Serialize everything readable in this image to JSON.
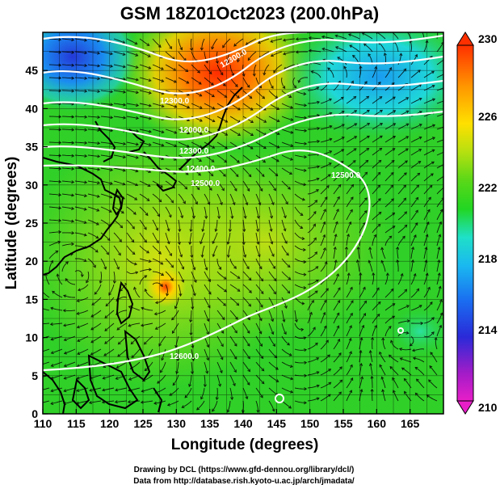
{
  "title": "GSM 18Z01Oct2023 (200.0hPa)",
  "xaxis": {
    "label": "Longitude (degrees)",
    "range": [
      110,
      170
    ],
    "ticks": [
      "110",
      "115",
      "120",
      "125",
      "130",
      "135",
      "140",
      "145",
      "150",
      "155",
      "160",
      "165"
    ]
  },
  "yaxis": {
    "label": "Latitude (degrees)",
    "range": [
      0,
      50
    ],
    "ticks": [
      "0",
      "5",
      "10",
      "15",
      "20",
      "25",
      "30",
      "35",
      "40",
      "45"
    ]
  },
  "colorbar": {
    "range": [
      210,
      230
    ],
    "ticks": [
      "210",
      "214",
      "218",
      "222",
      "226",
      "230"
    ],
    "colors": [
      "#e81ec8",
      "#7a1bd0",
      "#2030d8",
      "#1a8cff",
      "#1fd0e0",
      "#22cc22",
      "#9ee010",
      "#ffe000",
      "#ff9a00",
      "#ff3000"
    ]
  },
  "contour_labels": [
    "12300.0",
    "12300.0",
    "12000.0",
    "12300.0",
    "12400.0",
    "12500.0",
    "12600.0",
    "12500.0"
  ],
  "credits": {
    "line1": "Drawing by DCL (https://www.gfd-dennou.org/library/dcl/)",
    "line2": "Data from http://database.rish.kyoto-u.ac.jp/arch/jmadata/"
  },
  "colors": {
    "contour": "#ffffff",
    "coastline": "#000000",
    "streamline": "#000000",
    "grid": "#000000"
  }
}
